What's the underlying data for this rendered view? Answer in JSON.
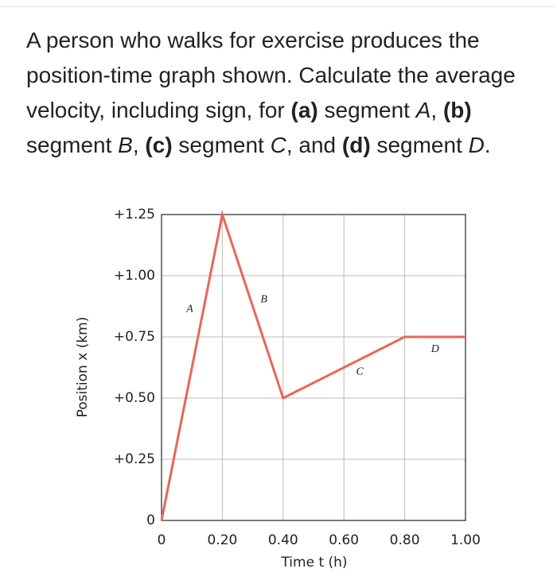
{
  "question": {
    "segments": [
      {
        "text": "A person who walks for exercise produces the position-time graph shown. Calculate the average velocity, including sign, for "
      },
      {
        "text": "(a)",
        "bold": true
      },
      {
        "text": " segment "
      },
      {
        "text": "A",
        "italic": true
      },
      {
        "text": ", "
      },
      {
        "text": "(b)",
        "bold": true
      },
      {
        "text": " segment "
      },
      {
        "text": "B",
        "italic": true
      },
      {
        "text": ", "
      },
      {
        "text": "(c)",
        "bold": true
      },
      {
        "text": " segment "
      },
      {
        "text": "C",
        "italic": true
      },
      {
        "text": ", and "
      },
      {
        "text": "(d)",
        "bold": true
      },
      {
        "text": " segment "
      },
      {
        "text": "D",
        "italic": true
      },
      {
        "text": "."
      }
    ]
  },
  "chart_data": {
    "type": "line",
    "x_label": "Time t (h)",
    "y_label": "Position x (km)",
    "x": [
      0,
      0.2,
      0.4,
      0.8,
      1.0
    ],
    "series": [
      {
        "color": "#e8665a",
        "values": [
          0,
          1.25,
          0.5,
          0.75,
          0.75
        ]
      }
    ],
    "annotations": [
      "A",
      "B",
      "C",
      "D"
    ],
    "xlim": [
      0,
      1.0
    ],
    "ylim": [
      0,
      1.25
    ],
    "xticks": [
      0,
      {
        "value": 0.2,
        "label": "0.20"
      },
      {
        "value": 0.4,
        "label": "0.40"
      },
      {
        "value": 0.6,
        "label": "0.60"
      },
      {
        "value": 0.8,
        "label": "0.80"
      },
      {
        "value": 1.0,
        "label": "1.00"
      }
    ],
    "yticks": [
      0,
      {
        "value": 0.25,
        "label": "+0.25"
      },
      {
        "value": 0.5,
        "label": "+0.50"
      },
      {
        "value": 0.75,
        "label": "+0.75"
      },
      {
        "value": 1.0,
        "label": "+1.00"
      },
      {
        "value": 1.25,
        "label": "+1.25"
      }
    ],
    "grid": true
  }
}
